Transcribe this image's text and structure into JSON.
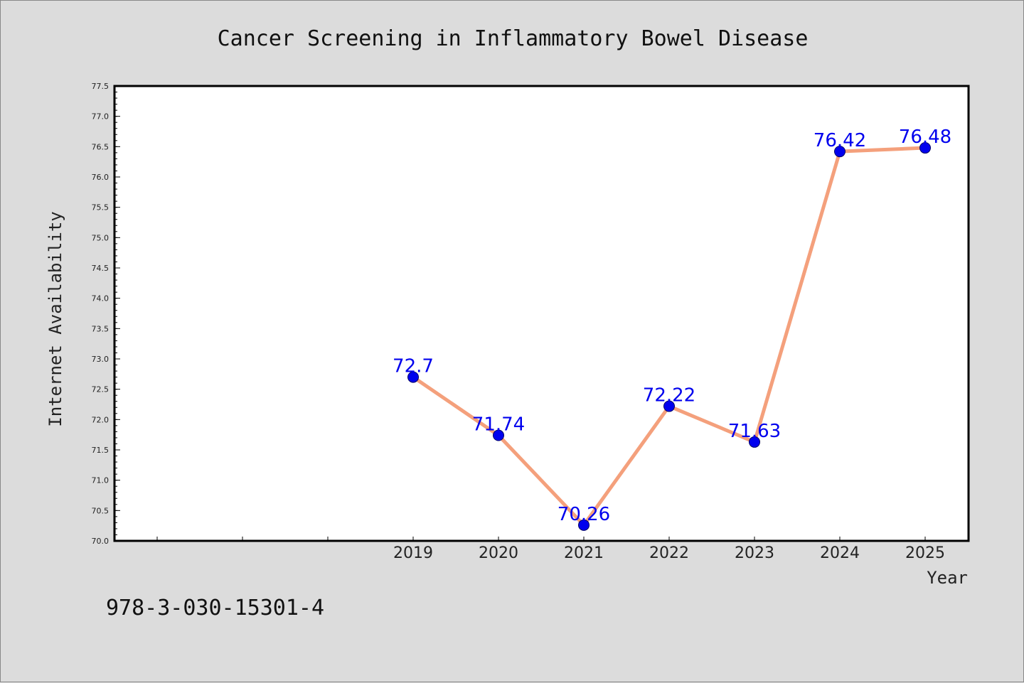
{
  "chart_data": {
    "type": "line",
    "title": "Cancer Screening in Inflammatory Bowel Disease",
    "xlabel": "Year",
    "ylabel": "Internet Availability",
    "x": [
      "2019",
      "2020",
      "2021",
      "2022",
      "2023",
      "2024",
      "2025"
    ],
    "series": [
      {
        "values": [
          72.7,
          71.74,
          70.26,
          72.22,
          71.63,
          76.42,
          76.48
        ],
        "data_labels": [
          "72.7",
          "71.74",
          "70.26",
          "72.22",
          "71.63",
          "76.42",
          "76.48"
        ]
      }
    ],
    "ylim": [
      70.0,
      77.5
    ],
    "yticks": [
      "70.0",
      "70.5",
      "71.0",
      "71.5",
      "72.0",
      "72.5",
      "73.0",
      "73.5",
      "74.0",
      "74.5",
      "75.0",
      "75.5",
      "76.0",
      "76.5",
      "77.0",
      "77.5"
    ],
    "grid": false,
    "colors": {
      "line": "#f4a07c",
      "marker": "#0000ee",
      "data_label": "#0000ee",
      "plot_background": "#ffffff",
      "figure_background": "#dcdcdc"
    }
  },
  "annotation": "978-3-030-15301-4"
}
